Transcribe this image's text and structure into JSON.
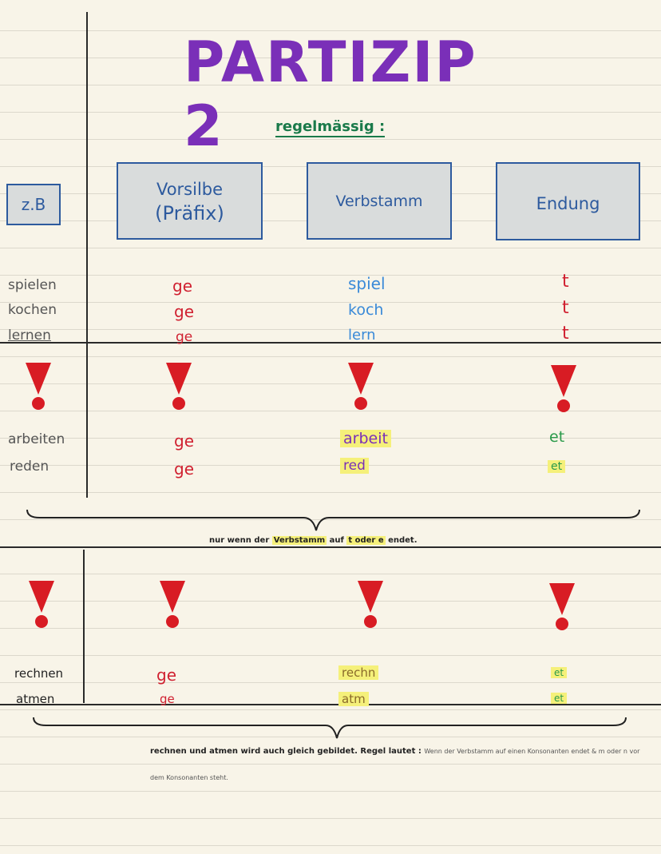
{
  "title": "PARTIZIP 2",
  "subtitle": "regelmässig :",
  "example_label": "z.B",
  "headers": {
    "prefix_line1": "Vorsilbe",
    "prefix_line2": "(Präfix)",
    "stem": "Verbstamm",
    "ending": "Endung"
  },
  "regular": [
    {
      "verb": "spielen",
      "prefix": "ge",
      "stem": "spiel",
      "ending": "t"
    },
    {
      "verb": "kochen",
      "prefix": "ge",
      "stem": "koch",
      "ending": "t"
    },
    {
      "verb": "lernen",
      "prefix": "ge",
      "stem": "lern",
      "ending": "t"
    }
  ],
  "special1": [
    {
      "verb": "arbeiten",
      "prefix": "ge",
      "stem": "arbeit",
      "ending": "et"
    },
    {
      "verb": "reden",
      "prefix": "ge",
      "stem": "red",
      "ending": "et"
    }
  ],
  "note1": {
    "pre": "nur wenn der",
    "stem_word": "Verbstamm",
    "mid": "auf",
    "letters": "t oder e",
    "post": "endet."
  },
  "special2": [
    {
      "verb": "rechnen",
      "prefix": "ge",
      "stem": "rechn",
      "ending": "et"
    },
    {
      "verb": "atmen",
      "prefix": "ge",
      "stem": "atm",
      "ending": "et"
    }
  ],
  "note2": {
    "bold": "rechnen und atmen wird auch gleich gebildet. Regel lautet :",
    "small": "Wenn der Verbstamm auf einen Konsonanten endet & m oder n vor",
    "line2": "dem Konsonanten steht."
  },
  "colors": {
    "title": "#7a2fb8",
    "subtitle": "#1a7a4a",
    "box_border": "#2d5a9e",
    "box_fill": "#d9dcdc",
    "prefix_red": "#d02030",
    "stem_blue": "#3a8ad8",
    "highlight": "#f5f07a",
    "exclamation": "#d81c24"
  },
  "icons": [
    "exclamation-icon",
    "curly-brace-icon"
  ]
}
